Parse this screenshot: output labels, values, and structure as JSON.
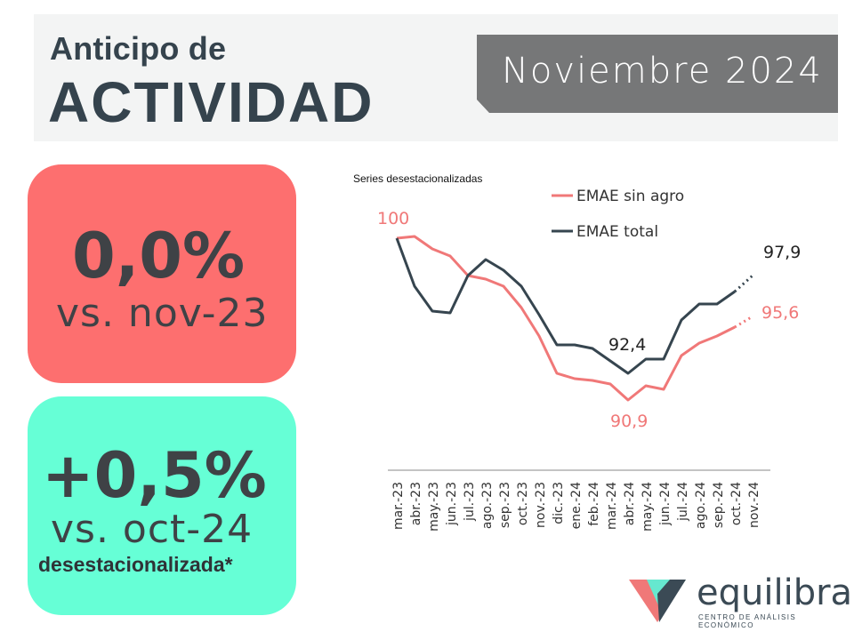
{
  "header": {
    "title_small": "Anticipo de",
    "title_big": "ACTIVIDAD",
    "month": "Noviembre 2024"
  },
  "cards": {
    "yoy": {
      "value": "0,0%",
      "comparison": "vs. nov-23",
      "color": "#fd6f6f"
    },
    "mom": {
      "value": "+0,5%",
      "comparison": "vs. oct-24",
      "note": "desestacionalizada*",
      "color": "#66ffd6"
    }
  },
  "logo": {
    "name": "equilibra",
    "tagline": "CENTRO DE ANÁLISIS ECONÓMICO"
  },
  "chart_data": {
    "type": "line",
    "subtitle": "Series desestacionalizadas",
    "categories": [
      "mar.-23",
      "abr.-23",
      "may.-23",
      "jun.-23",
      "jul.-23",
      "ago.-23",
      "sep.-23",
      "oct.-23",
      "nov.-23",
      "dic.-23",
      "ene.-24",
      "feb.-24",
      "mar.-24",
      "abr.-24",
      "may.-24",
      "jun.-24",
      "jul.-24",
      "ago.-24",
      "sep.-24",
      "oct.-24",
      "nov.-24"
    ],
    "series": [
      {
        "name": "EMAE sin agro",
        "color": "#f07878",
        "values": [
          100,
          100.1,
          99.4,
          99.0,
          97.9,
          97.7,
          97.3,
          96.1,
          94.5,
          92.4,
          92.1,
          92.0,
          91.8,
          90.9,
          91.7,
          91.5,
          93.4,
          94.1,
          94.5,
          95.0,
          95.6
        ]
      },
      {
        "name": "EMAE total",
        "color": "#36454f",
        "values": [
          100,
          97.3,
          95.9,
          95.8,
          97.9,
          98.8,
          98.2,
          97.3,
          95.7,
          94.0,
          94.0,
          93.8,
          93.1,
          92.4,
          93.2,
          93.2,
          95.4,
          96.3,
          96.3,
          97.0,
          97.9
        ]
      }
    ],
    "labels": [
      {
        "text": "100",
        "series": 0,
        "index": 0
      },
      {
        "text": "92,4",
        "series": 1,
        "index": 13
      },
      {
        "text": "90,9",
        "series": 0,
        "index": 13
      },
      {
        "text": "97,9",
        "series": 1,
        "index": 20
      },
      {
        "text": "95,6",
        "series": 0,
        "index": 20
      }
    ],
    "legend_position": "top-right",
    "grid": false,
    "last_segment_dotted": true
  }
}
